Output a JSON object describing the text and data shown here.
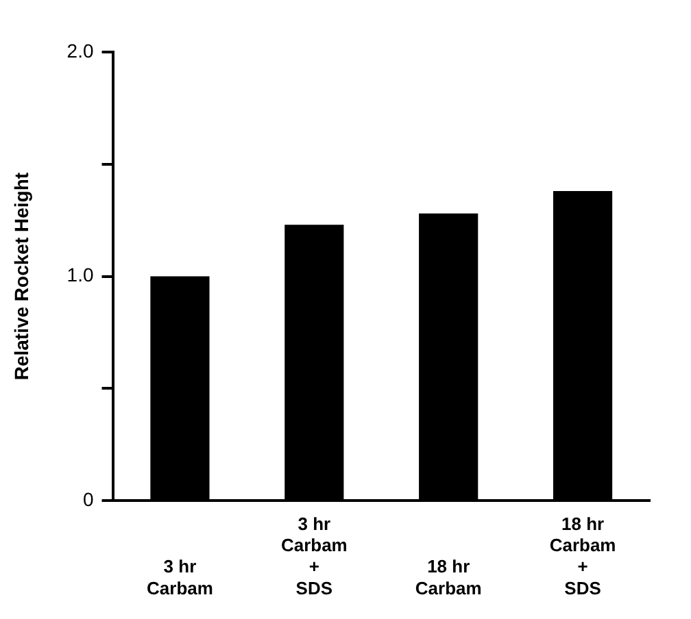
{
  "chart_data": {
    "type": "bar",
    "ylabel": "Relative Rocket Height",
    "categories": [
      "3 hr\nCarbam",
      "3 hr\nCarbam\n+\nSDS",
      "18 hr\nCarbam",
      "18 hr\nCarbam\n+\nSDS"
    ],
    "values": [
      1.0,
      1.23,
      1.28,
      1.38
    ],
    "color": "#000000",
    "ylim": [
      0,
      2
    ],
    "yticks": [
      0,
      {
        "value": 0.5,
        "label": null
      },
      {
        "value": 1,
        "label": "1.0"
      },
      {
        "value": 1.5,
        "label": null
      },
      {
        "value": 2,
        "label": "2.0"
      }
    ],
    "grid": false,
    "legend": false
  }
}
